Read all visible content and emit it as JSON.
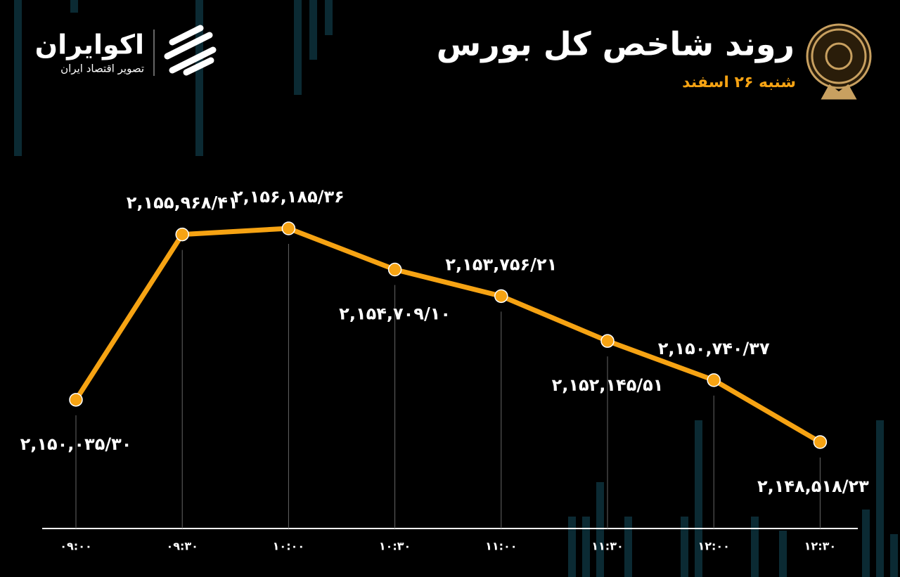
{
  "chart_data": {
    "type": "line",
    "title": "روند شاخص کل بورس",
    "subtitle": "شنبه ۲۶ اسفند",
    "brand": "اکوایران",
    "brand_tagline": "تصویر اقتصاد ایران",
    "categories": [
      "۰۹:۰۰",
      "۰۹:۳۰",
      "۱۰:۰۰",
      "۱۰:۳۰",
      "۱۱:۰۰",
      "۱۱:۳۰",
      "۱۲:۰۰",
      "۱۲:۳۰"
    ],
    "values": [
      2150035.3,
      2155968.41,
      2156185.36,
      2154709.1,
      2153756.21,
      2152145.51,
      2150740.37,
      2148518.23
    ],
    "value_labels": [
      "۲,۱۵۰,۰۳۵/۳۰",
      "۲,۱۵۵,۹۶۸/۴۱",
      "۲,۱۵۶,۱۸۵/۳۶",
      "۲,۱۵۴,۷۰۹/۱۰",
      "۲,۱۵۳,۷۵۶/۲۱",
      "۲,۱۵۲,۱۴۵/۵۱",
      "۲,۱۵۰,۷۴۰/۳۷",
      "۲,۱۴۸,۵۱۸/۲۳"
    ],
    "color": "#f6a313"
  }
}
